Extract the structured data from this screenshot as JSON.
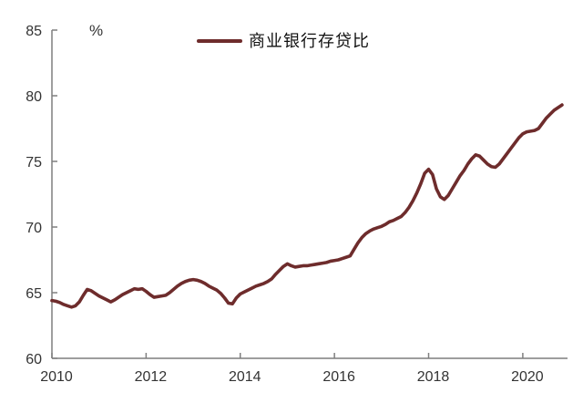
{
  "chart": {
    "unit_label": "%",
    "legend": {
      "label": "商业银行存贷比"
    },
    "colors": {
      "line": "#6e2c2c",
      "axis": "#7f7f7f",
      "tick_text": "#333333",
      "background": "#ffffff"
    }
  },
  "chart_data": {
    "type": "line",
    "title": "",
    "xlabel": "",
    "ylabel": "%",
    "legend_position": "top-center",
    "grid": false,
    "xlim": [
      2010,
      2020.95
    ],
    "ylim": [
      60,
      85
    ],
    "x_ticks": [
      2010,
      2012,
      2014,
      2016,
      2018,
      2020
    ],
    "y_ticks": [
      60,
      65,
      70,
      75,
      80,
      85
    ],
    "series": [
      {
        "name": "商业银行存贷比",
        "color": "#6e2c2c",
        "x_start": 2010,
        "x_step_months": 1,
        "values": [
          64.4,
          64.35,
          64.25,
          64.1,
          64.0,
          63.9,
          64.0,
          64.3,
          64.8,
          65.25,
          65.15,
          64.95,
          64.75,
          64.6,
          64.45,
          64.3,
          64.45,
          64.65,
          64.85,
          65.0,
          65.15,
          65.3,
          65.25,
          65.3,
          65.1,
          64.85,
          64.65,
          64.7,
          64.75,
          64.8,
          65.0,
          65.25,
          65.5,
          65.7,
          65.85,
          65.95,
          66.0,
          65.95,
          65.85,
          65.7,
          65.5,
          65.35,
          65.2,
          64.95,
          64.6,
          64.2,
          64.15,
          64.6,
          64.9,
          65.05,
          65.2,
          65.35,
          65.5,
          65.6,
          65.7,
          65.85,
          66.05,
          66.4,
          66.7,
          67.0,
          67.2,
          67.05,
          66.95,
          67.0,
          67.05,
          67.05,
          67.1,
          67.15,
          67.2,
          67.25,
          67.3,
          67.4,
          67.45,
          67.5,
          67.6,
          67.7,
          67.8,
          68.3,
          68.8,
          69.2,
          69.5,
          69.7,
          69.85,
          69.95,
          70.05,
          70.2,
          70.4,
          70.5,
          70.65,
          70.8,
          71.1,
          71.5,
          72.0,
          72.6,
          73.3,
          74.1,
          74.4,
          74.0,
          72.9,
          72.3,
          72.1,
          72.4,
          72.9,
          73.4,
          73.9,
          74.3,
          74.8,
          75.2,
          75.5,
          75.4,
          75.1,
          74.8,
          74.6,
          74.55,
          74.8,
          75.2,
          75.6,
          76.0,
          76.4,
          76.8,
          77.1,
          77.25,
          77.3,
          77.35,
          77.5,
          77.9,
          78.3,
          78.6,
          78.9,
          79.1,
          79.3
        ]
      }
    ]
  }
}
